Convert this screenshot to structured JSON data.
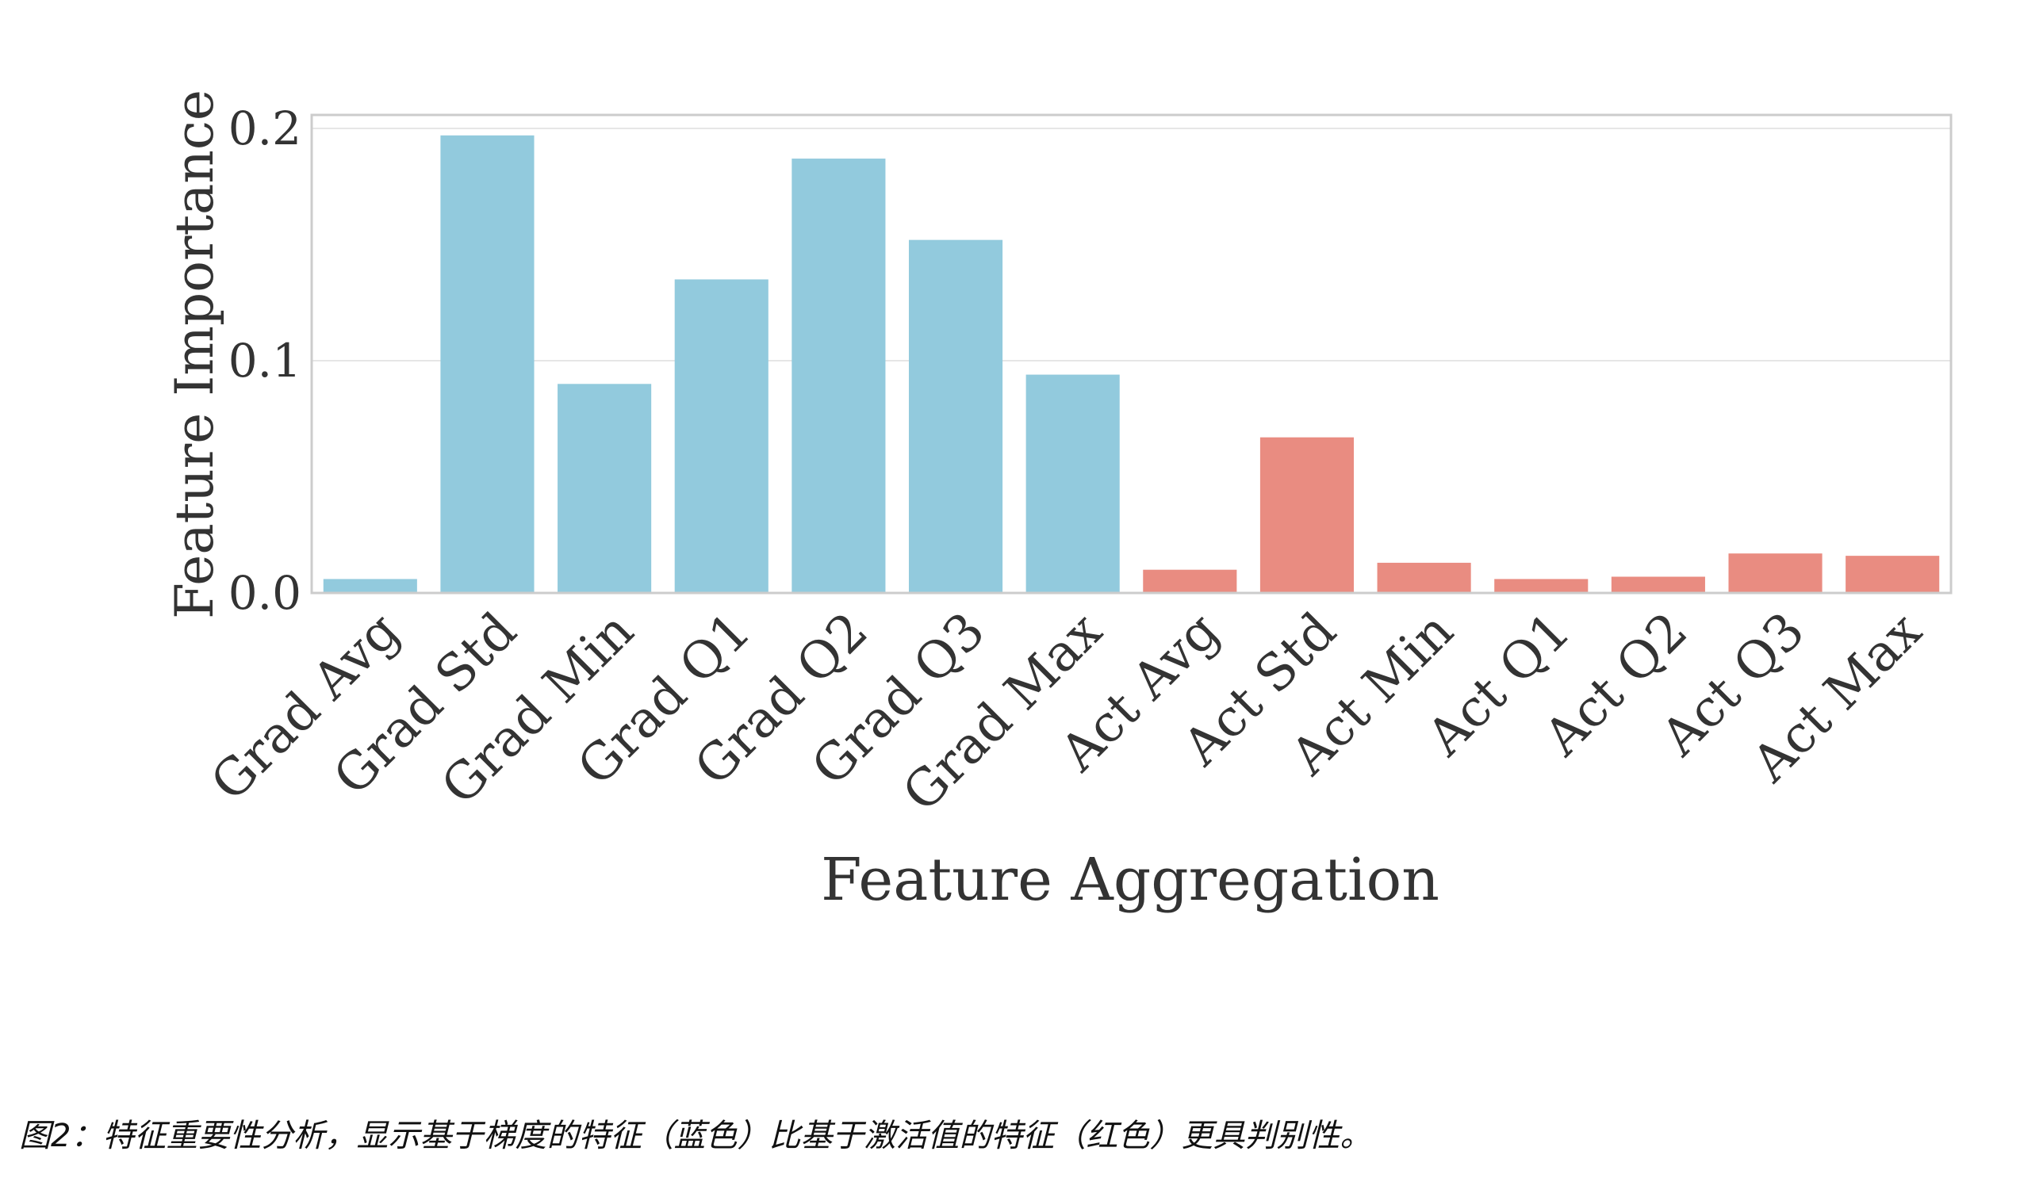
{
  "chart_data": {
    "type": "bar",
    "xlabel": "Feature Aggregation",
    "ylabel": "Feature Importance",
    "ylim": [
      0,
      0.2
    ],
    "yticks": [
      "0.0",
      "0.1",
      "0.2"
    ],
    "grid": true,
    "categories": [
      "Grad Avg",
      "Grad Std",
      "Grad Min",
      "Grad Q1",
      "Grad Q2",
      "Grad Q3",
      "Grad Max",
      "Act Avg",
      "Act Std",
      "Act Min",
      "Act Q1",
      "Act Q2",
      "Act Q3",
      "Act Max"
    ],
    "values": [
      0.006,
      0.197,
      0.09,
      0.135,
      0.187,
      0.152,
      0.094,
      0.01,
      0.067,
      0.013,
      0.006,
      0.007,
      0.017,
      0.016
    ],
    "bar_colors": [
      "#92cadd",
      "#92cadd",
      "#92cadd",
      "#92cadd",
      "#92cadd",
      "#92cadd",
      "#92cadd",
      "#e98c81",
      "#e98c81",
      "#e98c81",
      "#e98c81",
      "#e98c81",
      "#e98c81",
      "#e98c81"
    ],
    "axis_color": "#cccccc",
    "grid_color": "#e6e6e6"
  },
  "caption": "图2：特征重要性分析，显示基于梯度的特征（蓝色）比基于激活值的特征（红色）更具判别性。"
}
